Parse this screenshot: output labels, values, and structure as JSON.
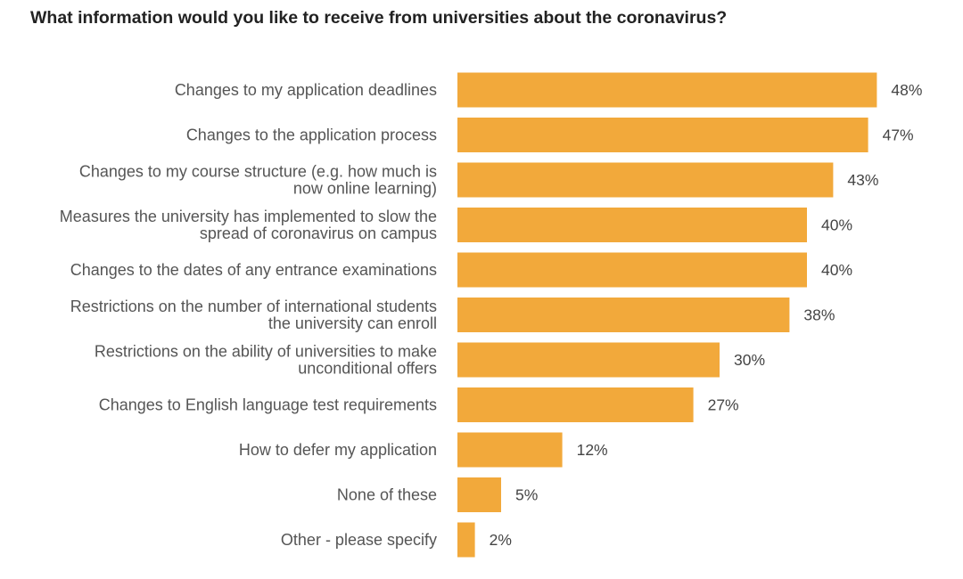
{
  "chart_data": {
    "type": "bar",
    "orientation": "horizontal",
    "title": "What information would you like to receive from universities about the coronavirus?",
    "xlabel": "",
    "ylabel": "",
    "value_suffix": "%",
    "xlim": [
      0,
      48
    ],
    "grid": false,
    "legend": "none",
    "bar_color": "#F2A93B",
    "categories": [
      "Changes to my application deadlines",
      "Changes to the application process",
      "Changes to my course structure (e.g. how much is now online learning)",
      "Measures the university has implemented to slow the spread of coronavirus on campus",
      "Changes to the dates of any entrance examinations",
      "Restrictions on the number of international students the university can enroll",
      "Restrictions on the ability of universities to make unconditional offers",
      "Changes to English language test requirements",
      "How to defer my application",
      "None of these",
      "Other - please specify"
    ],
    "category_lines": [
      [
        "Changes to my application deadlines"
      ],
      [
        "Changes to the application process"
      ],
      [
        "Changes to my course structure (e.g. how much is",
        "now online learning)"
      ],
      [
        "Measures the university has implemented to slow the",
        "spread of coronavirus on campus"
      ],
      [
        "Changes to the dates of any entrance examinations"
      ],
      [
        "Restrictions on the number of international students",
        "the university can enroll"
      ],
      [
        "Restrictions on the ability of universities to make",
        "unconditional offers"
      ],
      [
        "Changes to English language test requirements"
      ],
      [
        "How to defer my application"
      ],
      [
        "None of these"
      ],
      [
        "Other - please specify"
      ]
    ],
    "values": [
      48,
      47,
      43,
      40,
      40,
      38,
      30,
      27,
      12,
      5,
      2
    ],
    "data_labels": [
      "48%",
      "47%",
      "43%",
      "40%",
      "40%",
      "38%",
      "30%",
      "27%",
      "12%",
      "5%",
      "2%"
    ]
  }
}
